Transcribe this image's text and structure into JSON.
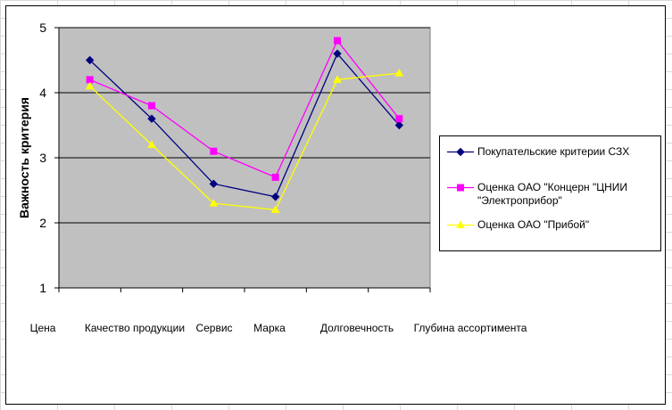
{
  "chart_data": {
    "type": "line",
    "categories": [
      "Цена",
      "Качество продукции",
      "Сервис",
      "Марка",
      "Долговечность",
      "Глубина ассортимента"
    ],
    "ylabel": "Важность критерия",
    "xlabel": "",
    "ylim": [
      1,
      5
    ],
    "yticks": [
      1,
      2,
      3,
      4,
      5
    ],
    "grid": true,
    "legend_placement": "right",
    "plot_background": "#c0c0c0",
    "series": [
      {
        "name": "Покупательские критерии СЗХ",
        "values": [
          4.5,
          3.6,
          2.6,
          2.4,
          4.6,
          3.5
        ],
        "color": "#000080",
        "marker": "diamond"
      },
      {
        "name": "Оценка ОАО \"Концерн \"ЦНИИ \"Электроприбор\"",
        "values": [
          4.2,
          3.8,
          3.1,
          2.7,
          4.8,
          3.6
        ],
        "color": "#ff00ff",
        "marker": "square"
      },
      {
        "name": "Оценка ОАО \"Прибой\"",
        "values": [
          4.1,
          3.2,
          2.3,
          2.2,
          4.2,
          4.3
        ],
        "color": "#ffff00",
        "marker": "triangle"
      }
    ]
  }
}
